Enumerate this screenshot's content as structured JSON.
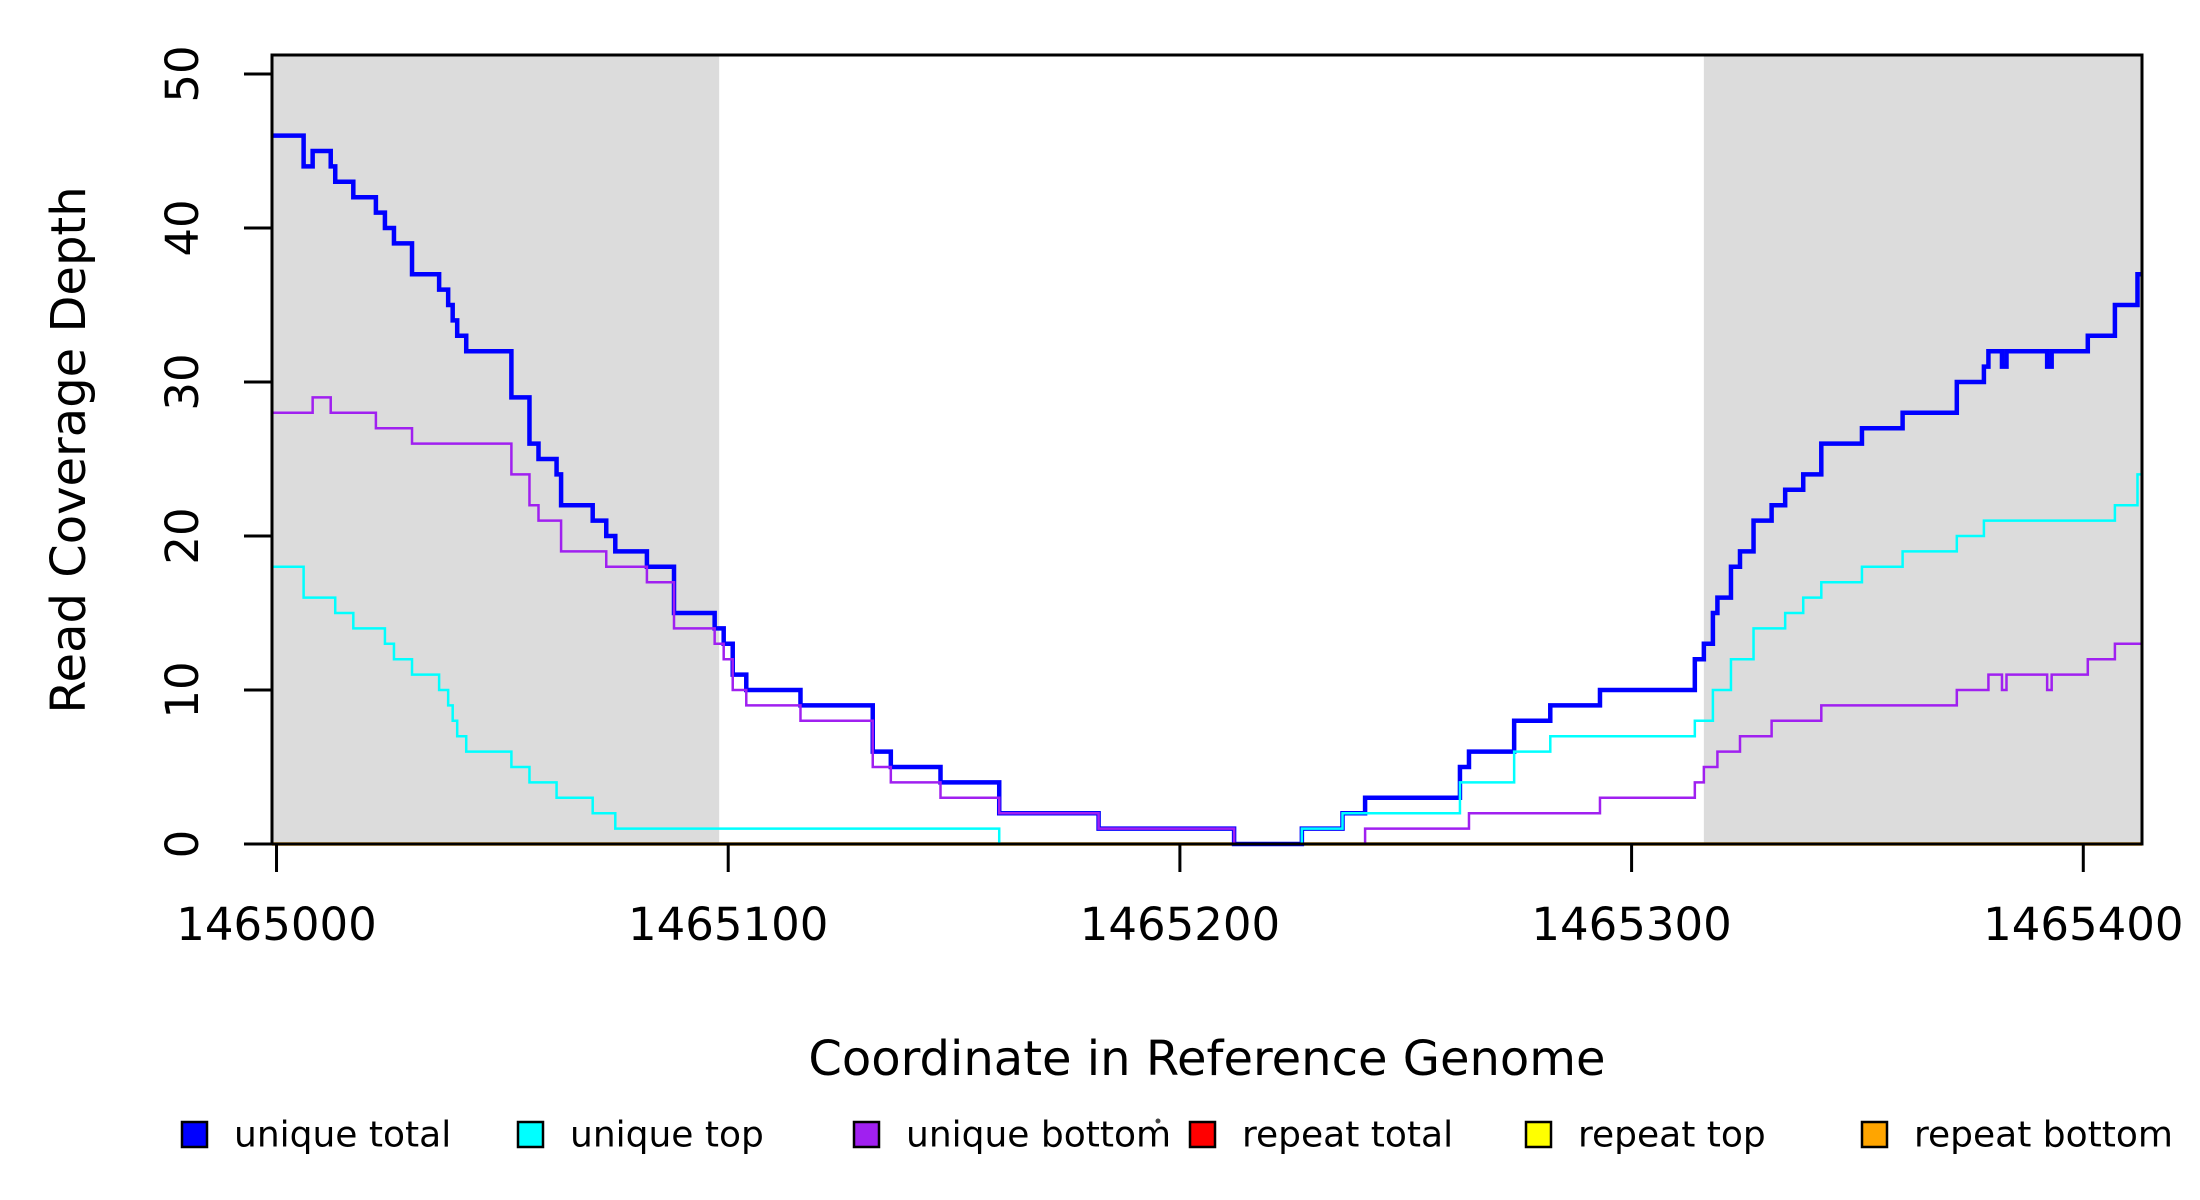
{
  "chart_data": {
    "type": "line",
    "step": true,
    "title": "",
    "xlabel": "Coordinate in Reference Genome",
    "ylabel": "Read Coverage Depth",
    "x_range": [
      1464999,
      1465413
    ],
    "y_range": [
      0,
      51
    ],
    "x_ticks": [
      1465000,
      1465100,
      1465200,
      1465300,
      1465400
    ],
    "y_ticks": [
      0,
      10,
      20,
      30,
      40,
      50
    ],
    "grid": false,
    "legend_position": "bottom",
    "shade_color": "#DCDCDC",
    "shaded_regions": [
      {
        "from": 1464999,
        "to": 1465098
      },
      {
        "from": 1465316,
        "to": 1465413
      }
    ],
    "series": [
      {
        "name": "unique total",
        "color": "#0000FF",
        "points": [
          [
            1464999,
            46
          ],
          [
            1465006,
            44
          ],
          [
            1465008,
            45
          ],
          [
            1465012,
            44
          ],
          [
            1465013,
            43
          ],
          [
            1465017,
            42
          ],
          [
            1465022,
            41
          ],
          [
            1465024,
            40
          ],
          [
            1465026,
            39
          ],
          [
            1465030,
            37
          ],
          [
            1465036,
            36
          ],
          [
            1465038,
            35
          ],
          [
            1465039,
            34
          ],
          [
            1465040,
            33
          ],
          [
            1465042,
            32
          ],
          [
            1465052,
            29
          ],
          [
            1465056,
            26
          ],
          [
            1465058,
            25
          ],
          [
            1465062,
            24
          ],
          [
            1465063,
            22
          ],
          [
            1465070,
            21
          ],
          [
            1465073,
            20
          ],
          [
            1465075,
            19
          ],
          [
            1465082,
            18
          ],
          [
            1465088,
            15
          ],
          [
            1465097,
            14
          ],
          [
            1465099,
            13
          ],
          [
            1465101,
            11
          ],
          [
            1465104,
            10
          ],
          [
            1465116,
            9
          ],
          [
            1465132,
            6
          ],
          [
            1465136,
            5
          ],
          [
            1465147,
            4
          ],
          [
            1465160,
            2
          ],
          [
            1465182,
            1
          ],
          [
            1465212,
            0
          ],
          [
            1465227,
            1
          ],
          [
            1465236,
            2
          ],
          [
            1465241,
            3
          ],
          [
            1465262,
            5
          ],
          [
            1465264,
            6
          ],
          [
            1465274,
            8
          ],
          [
            1465282,
            9
          ],
          [
            1465293,
            10
          ],
          [
            1465314,
            12
          ],
          [
            1465316,
            13
          ],
          [
            1465318,
            15
          ],
          [
            1465319,
            16
          ],
          [
            1465322,
            18
          ],
          [
            1465324,
            19
          ],
          [
            1465327,
            21
          ],
          [
            1465331,
            22
          ],
          [
            1465334,
            23
          ],
          [
            1465338,
            24
          ],
          [
            1465342,
            26
          ],
          [
            1465351,
            27
          ],
          [
            1465360,
            28
          ],
          [
            1465372,
            30
          ],
          [
            1465378,
            31
          ],
          [
            1465379,
            32
          ],
          [
            1465382,
            31
          ],
          [
            1465383,
            32
          ],
          [
            1465392,
            31
          ],
          [
            1465393,
            32
          ],
          [
            1465401,
            33
          ],
          [
            1465407,
            35
          ],
          [
            1465412,
            37
          ]
        ]
      },
      {
        "name": "unique top",
        "color": "#00FFFF",
        "points": [
          [
            1464999,
            18
          ],
          [
            1465006,
            16
          ],
          [
            1465013,
            15
          ],
          [
            1465017,
            14
          ],
          [
            1465024,
            13
          ],
          [
            1465026,
            12
          ],
          [
            1465030,
            11
          ],
          [
            1465036,
            10
          ],
          [
            1465038,
            9
          ],
          [
            1465039,
            8
          ],
          [
            1465040,
            7
          ],
          [
            1465042,
            6
          ],
          [
            1465052,
            5
          ],
          [
            1465056,
            4
          ],
          [
            1465062,
            3
          ],
          [
            1465070,
            2
          ],
          [
            1465075,
            1
          ],
          [
            1465160,
            0
          ],
          [
            1465227,
            1
          ],
          [
            1465236,
            2
          ],
          [
            1465262,
            4
          ],
          [
            1465274,
            6
          ],
          [
            1465282,
            7
          ],
          [
            1465314,
            8
          ],
          [
            1465318,
            10
          ],
          [
            1465322,
            12
          ],
          [
            1465327,
            14
          ],
          [
            1465334,
            15
          ],
          [
            1465338,
            16
          ],
          [
            1465342,
            17
          ],
          [
            1465351,
            18
          ],
          [
            1465360,
            19
          ],
          [
            1465372,
            20
          ],
          [
            1465378,
            21
          ],
          [
            1465407,
            22
          ],
          [
            1465412,
            24
          ]
        ]
      },
      {
        "name": "unique bottom",
        "color": "#A020F0",
        "points": [
          [
            1464999,
            28
          ],
          [
            1465008,
            29
          ],
          [
            1465012,
            28
          ],
          [
            1465022,
            27
          ],
          [
            1465030,
            26
          ],
          [
            1465052,
            24
          ],
          [
            1465056,
            22
          ],
          [
            1465058,
            21
          ],
          [
            1465063,
            19
          ],
          [
            1465073,
            18
          ],
          [
            1465082,
            17
          ],
          [
            1465088,
            14
          ],
          [
            1465097,
            13
          ],
          [
            1465099,
            12
          ],
          [
            1465101,
            10
          ],
          [
            1465104,
            9
          ],
          [
            1465116,
            8
          ],
          [
            1465132,
            5
          ],
          [
            1465136,
            4
          ],
          [
            1465147,
            3
          ],
          [
            1465160,
            2
          ],
          [
            1465182,
            1
          ],
          [
            1465212,
            0
          ],
          [
            1465241,
            1
          ],
          [
            1465264,
            2
          ],
          [
            1465293,
            3
          ],
          [
            1465314,
            4
          ],
          [
            1465316,
            5
          ],
          [
            1465319,
            6
          ],
          [
            1465324,
            7
          ],
          [
            1465331,
            8
          ],
          [
            1465342,
            9
          ],
          [
            1465372,
            10
          ],
          [
            1465379,
            11
          ],
          [
            1465382,
            10
          ],
          [
            1465383,
            11
          ],
          [
            1465392,
            10
          ],
          [
            1465393,
            11
          ],
          [
            1465401,
            12
          ],
          [
            1465407,
            13
          ]
        ]
      },
      {
        "name": "repeat total",
        "color": "#FF0000",
        "points": [
          [
            1464999,
            0
          ]
        ]
      },
      {
        "name": "repeat top",
        "color": "#FFFF00",
        "points": [
          [
            1464999,
            0
          ]
        ]
      },
      {
        "name": "repeat bottom",
        "color": "#FFA500",
        "points": [
          [
            1464999,
            0
          ]
        ]
      }
    ]
  }
}
